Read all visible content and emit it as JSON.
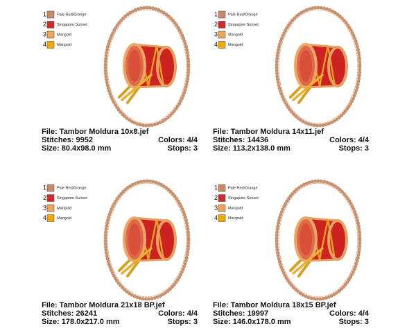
{
  "panels": [
    {
      "threads": [
        {
          "number": "1",
          "name": "Pale Red/Orange",
          "color": "#c98a68"
        },
        {
          "number": "2",
          "name": "Singapore Sunset",
          "color": "#d42828"
        },
        {
          "number": "3",
          "name": "Marigold",
          "color": "#f2a356"
        },
        {
          "number": "4",
          "name": "Marigold",
          "color": "#f5a800"
        }
      ],
      "file": "File: Tambor Moldura 10x8.jef",
      "stitches": "Stitches: 9952",
      "size": "Size: 80.4x98.0 mm",
      "colors": "Colors: 4/4",
      "stops": "Stops: 3"
    },
    {
      "threads": [
        {
          "number": "1",
          "name": "Pale Red/Orange",
          "color": "#c98a68"
        },
        {
          "number": "2",
          "name": "Singapore Sunset",
          "color": "#d42828"
        },
        {
          "number": "3",
          "name": "Marigold",
          "color": "#f2a356"
        },
        {
          "number": "4",
          "name": "Marigold",
          "color": "#f5a800"
        }
      ],
      "file": "File: Tambor Moldura 14x11.jef",
      "stitches": "Stitches: 14436",
      "size": "Size: 113.2x138.0 mm",
      "colors": "Colors: 4/4",
      "stops": "Stops: 3"
    },
    {
      "threads": [
        {
          "number": "1",
          "name": "Pale Red/Orange",
          "color": "#c98a68"
        },
        {
          "number": "2",
          "name": "Singapore Sunset",
          "color": "#d42828"
        },
        {
          "number": "3",
          "name": "Marigold",
          "color": "#f2a356"
        },
        {
          "number": "4",
          "name": "Marigold",
          "color": "#f5a800"
        }
      ],
      "file": "File: Tambor Moldura 21x18 BP.jef",
      "stitches": "Stitches: 26241",
      "size": "Size: 178.0x217.0 mm",
      "colors": "Colors: 4/4",
      "stops": "Stops: 3"
    },
    {
      "threads": [
        {
          "number": "1",
          "name": "Pale Red/Orange",
          "color": "#c98a68"
        },
        {
          "number": "2",
          "name": "Singapore Sunset",
          "color": "#d42828"
        },
        {
          "number": "3",
          "name": "Marigold",
          "color": "#f2a356"
        },
        {
          "number": "4",
          "name": "Marigold",
          "color": "#f5a800"
        }
      ],
      "file": "File: Tambor Moldura 18x15 BP.jef",
      "stitches": "Stitches: 19997",
      "size": "Size: 146.0x178.0 mm",
      "colors": "Colors: 4/4",
      "stops": "Stops: 3"
    }
  ]
}
